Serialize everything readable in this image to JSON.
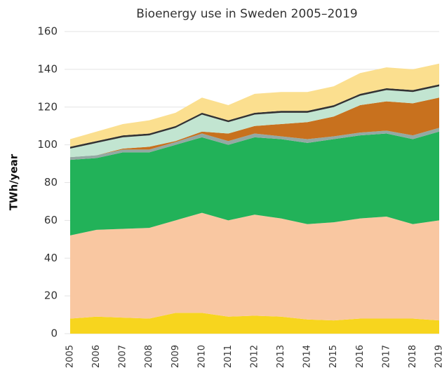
{
  "chart_data": {
    "type": "stacked_area",
    "title": "Bioenergy use in Sweden 2005–2019",
    "y_label": "TWh/year",
    "categories": [
      "2005",
      "2006",
      "2007",
      "2008",
      "2009",
      "2010",
      "2011",
      "2012",
      "2013",
      "2014",
      "2015",
      "2016",
      "2017",
      "2018",
      "2019"
    ],
    "series": [
      {
        "color": "#f7d51e",
        "values": [
          8,
          9,
          8.5,
          8,
          11,
          11,
          9,
          9.5,
          9,
          7.5,
          7,
          8,
          8,
          8,
          7
        ]
      },
      {
        "color": "#f9c7a1",
        "values": [
          44,
          46,
          47,
          48,
          49,
          53,
          51,
          53.5,
          52,
          50.5,
          52,
          53,
          54,
          50,
          53
        ]
      },
      {
        "color": "#22b259",
        "values": [
          40,
          38,
          40.5,
          40,
          40,
          40,
          40,
          41,
          42,
          43,
          44,
          44,
          44,
          45,
          47
        ]
      },
      {
        "color": "#93a9a3",
        "values": [
          1.5,
          1.5,
          1.5,
          1.5,
          1.5,
          2,
          2,
          2,
          1.5,
          2,
          1.5,
          1.5,
          1.5,
          2,
          2
        ]
      },
      {
        "color": "#c8711e",
        "values": [
          0,
          0,
          0.5,
          1.5,
          0.5,
          1,
          4,
          4,
          6.5,
          9,
          10.5,
          14.5,
          15.5,
          17,
          16
        ]
      },
      {
        "color": "#c2e5d1",
        "values": [
          4.5,
          6.5,
          6,
          6,
          7,
          9,
          6,
          6,
          6,
          5,
          5,
          5,
          6,
          6,
          6
        ]
      },
      {
        "color": "#333333",
        "values": [
          1,
          1,
          1,
          1,
          1,
          1,
          1,
          1,
          1,
          1,
          1,
          1,
          1,
          1,
          1
        ]
      },
      {
        "color": "#fbdf8f",
        "values": [
          4,
          5,
          6,
          7,
          7,
          8,
          8,
          10,
          10,
          10,
          10,
          11,
          11,
          11,
          11
        ]
      }
    ],
    "ylim": [
      0,
      160
    ],
    "yticks": [
      0,
      20,
      40,
      60,
      80,
      100,
      120,
      140,
      160
    ],
    "grid": true
  }
}
